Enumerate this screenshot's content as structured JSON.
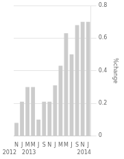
{
  "chart_data": {
    "type": "bar",
    "categories": [
      "N",
      "J",
      "M",
      "M",
      "J",
      "S",
      "N",
      "J",
      "M",
      "M",
      "J",
      "S",
      "N",
      "J"
    ],
    "values": [
      0.08,
      0.21,
      0.3,
      0.3,
      0.1,
      0.21,
      0.21,
      0.31,
      0.43,
      0.63,
      0.5,
      0.68,
      0.7,
      0.7
    ],
    "color": "#cccccc",
    "ylabel": "%change",
    "ylim": [
      0,
      0.8
    ],
    "yticks": [
      0,
      0.2,
      0.4,
      0.6,
      0.8
    ],
    "grid": true,
    "annotations": [
      {
        "text": "2012",
        "x": 0
      },
      {
        "text": "2013",
        "x": 1
      },
      {
        "text": "2014",
        "x": 11
      }
    ]
  }
}
